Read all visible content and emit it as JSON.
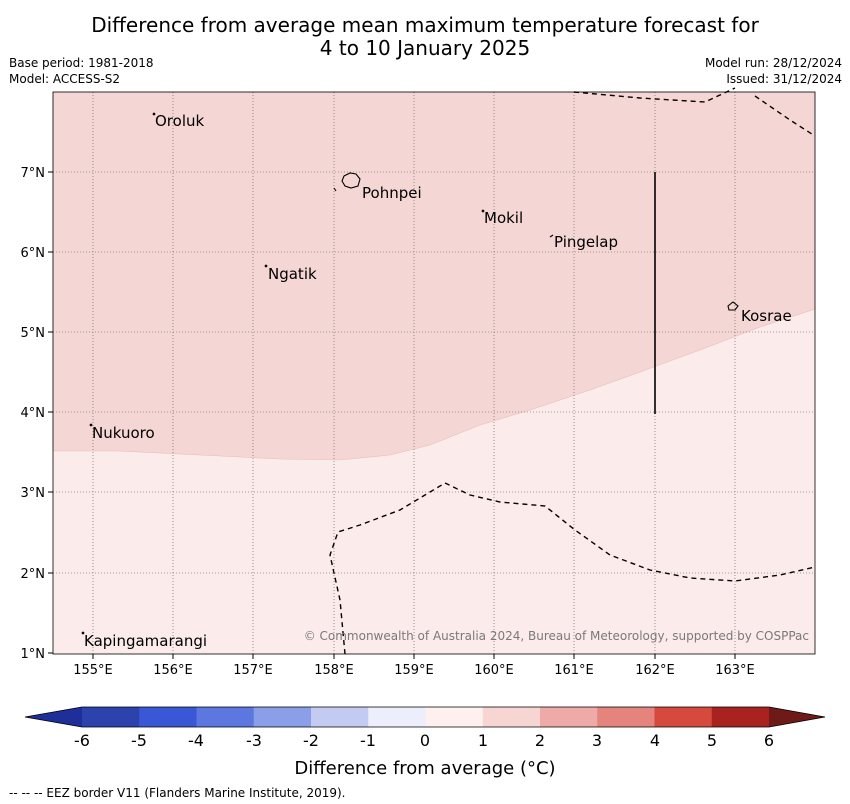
{
  "title_line1": "Difference from average mean maximum temperature forecast for",
  "title_line2": "4 to 10 January 2025",
  "base_period": "Base period: 1981-2018",
  "model": "Model: ACCESS-S2",
  "model_run": "Model run: 28/12/2024",
  "issued": "Issued: 31/12/2024",
  "copyright": "© Commonwealth of Australia 2024, Bureau of Meteorology, supported by COSPPac",
  "lat_labels": [
    "7°N",
    "6°N",
    "5°N",
    "4°N",
    "3°N",
    "2°N",
    "1°N"
  ],
  "lon_labels": [
    "155°E",
    "156°E",
    "157°E",
    "158°E",
    "159°E",
    "160°E",
    "161°E",
    "162°E",
    "163°E"
  ],
  "places": [
    {
      "name": "Oroluk"
    },
    {
      "name": "Pohnpei"
    },
    {
      "name": "Mokil"
    },
    {
      "name": "Pingelap"
    },
    {
      "name": "Ngatik"
    },
    {
      "name": "Kosrae"
    },
    {
      "name": "Nukuoro"
    },
    {
      "name": "Kapingamarangi"
    }
  ],
  "colorbar": {
    "title": "Difference from average (°C)",
    "ticks": [
      "-6",
      "-5",
      "-4",
      "-3",
      "-2",
      "-1",
      "0",
      "1",
      "2",
      "3",
      "4",
      "5",
      "6"
    ],
    "colors": [
      "#1f2f99",
      "#2c42ad",
      "#3a58d6",
      "#5c78e0",
      "#8b9fe9",
      "#c4cbf2",
      "#eceefb",
      "#fdf0ee",
      "#f7d5d3",
      "#eeaaa6",
      "#e4847c",
      "#d64a3e",
      "#a8231f",
      "#6e1a18"
    ]
  },
  "zones": {
    "upper_color": "#f4d6d4",
    "lower_color": "#fbebea"
  },
  "eez_note": "--  --  -- EEZ border V11 (Flanders Marine Institute, 2019)."
}
